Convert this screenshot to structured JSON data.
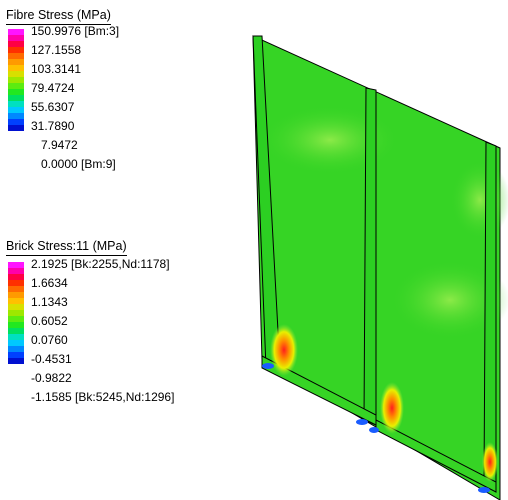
{
  "fibre_legend": {
    "title": "Fibre Stress (MPa)",
    "labels": [
      "150.9976 [Bm:3]",
      "127.1558",
      "103.3141",
      "79.4724",
      "55.6307",
      "31.7890",
      "7.9472",
      "0.0000 [Bm:9]"
    ],
    "colors": [
      "#ff14ff",
      "#ff00aa",
      "#ff0044",
      "#ff3000",
      "#ff6a00",
      "#ff9a00",
      "#ffc000",
      "#d8e000",
      "#9ee800",
      "#5cec10",
      "#22e820",
      "#00e060",
      "#00e0c0",
      "#00c8ff",
      "#0088ff",
      "#0040ff",
      "#0010d0"
    ]
  },
  "brick_legend": {
    "title": "Brick Stress:11 (MPa)",
    "labels": [
      "2.1925 [Bk:2255,Nd:1178]",
      "1.6634",
      "1.1343",
      "0.6052",
      "0.0760",
      "-0.4531",
      "-0.9822",
      "-1.1585 [Bk:5245,Nd:1296]"
    ],
    "colors": [
      "#ff14ff",
      "#ff00aa",
      "#ff0044",
      "#ff3000",
      "#ff6a00",
      "#ff9a00",
      "#ffc000",
      "#d8e000",
      "#9ee800",
      "#5cec10",
      "#22e820",
      "#00e060",
      "#00e0c0",
      "#00c8ff",
      "#0088ff",
      "#0040ff",
      "#0010d0"
    ]
  },
  "model_colors": {
    "base_green": "#36d425",
    "light_green": "#7ee642",
    "dark_green": "#1fc21c",
    "yellow": "#e8f000",
    "orange": "#ff8a00",
    "red": "#ff1e1e",
    "blue": "#1a5cff"
  }
}
